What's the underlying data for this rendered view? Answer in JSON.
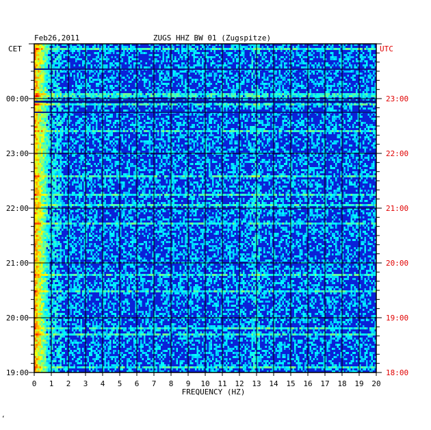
{
  "header": {
    "date": "Feb26,2011",
    "station": "ZUGS HHZ BW 01 (Zugspitze)",
    "left_zone": "CET",
    "right_zone": "UTC"
  },
  "colors": {
    "background_blue": "#0a22d8",
    "grid": "#000000",
    "utc_text": "#e00000",
    "text": "#000000"
  },
  "footer_mark": "‘",
  "chart_data": {
    "type": "heatmap",
    "title": "ZUGS HHZ BW 01 (Zugspitze)",
    "date": "Feb26,2011",
    "xlabel": "FREQUENCY (HZ)",
    "xlim": [
      0,
      20
    ],
    "x_ticks": [
      "0",
      "1",
      "2",
      "3",
      "4",
      "5",
      "6",
      "7",
      "8",
      "9",
      "10",
      "11",
      "12",
      "13",
      "14",
      "15",
      "16",
      "17",
      "18",
      "19",
      "20"
    ],
    "time_window_utc": [
      "18:00",
      "24:00"
    ],
    "left_axis_cet_labels": [
      "19:00",
      "20:00",
      "21:00",
      "22:00",
      "23:00",
      "00:00"
    ],
    "right_axis_utc_labels": [
      "18:00",
      "19:00",
      "20:00",
      "21:00",
      "22:00",
      "23:00"
    ],
    "colormap": "jet",
    "dominant_energy_band_hz": [
      0,
      1
    ],
    "note_bands_hz": [
      12.7,
      13.2
    ]
  }
}
